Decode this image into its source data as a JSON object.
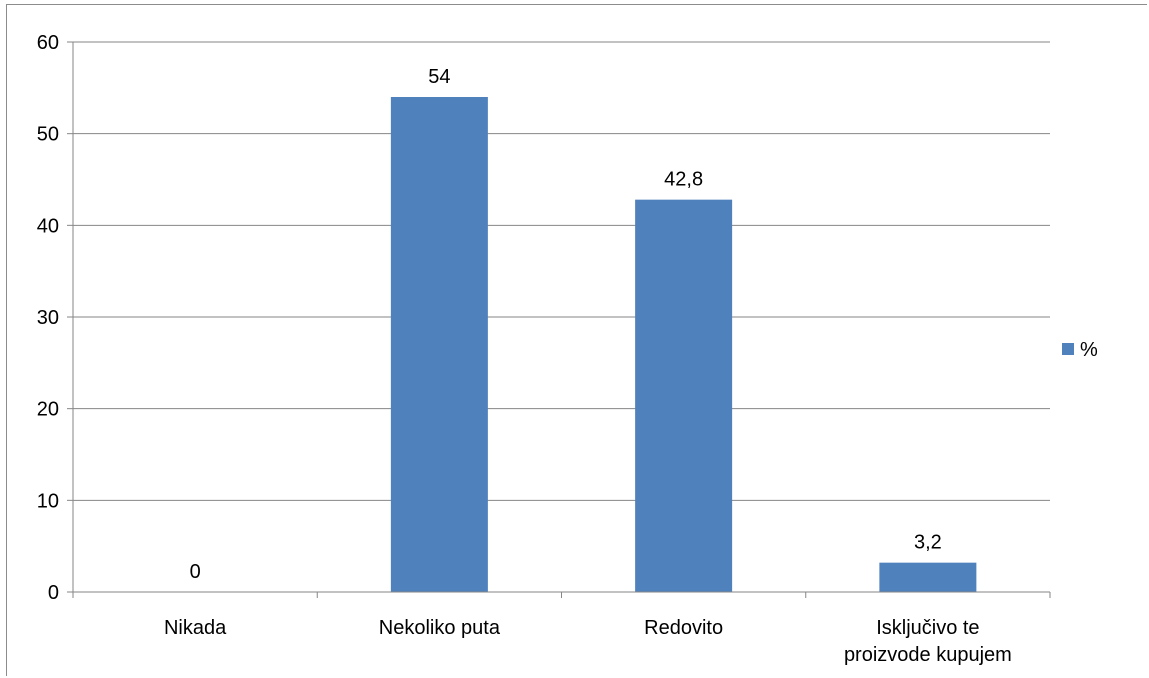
{
  "chart_data": {
    "type": "bar",
    "categories": [
      "Nikada",
      "Nekoliko puta",
      "Redovito",
      "Isključivo te proizvode kupujem"
    ],
    "category_lines": [
      [
        "Nikada"
      ],
      [
        "Nekoliko puta"
      ],
      [
        "Redovito"
      ],
      [
        "Isključivo te",
        "proizvode kupujem"
      ]
    ],
    "series": [
      {
        "name": "%",
        "values": [
          0,
          54,
          42.8,
          3.2
        ],
        "labels": [
          "0",
          "54",
          "42,8",
          "3,2"
        ]
      }
    ],
    "ylim": [
      0,
      60
    ],
    "yticks": [
      0,
      10,
      20,
      30,
      40,
      50,
      60
    ],
    "grid": true,
    "legend_position": "right",
    "colors": {
      "bar": "#4f81bd",
      "grid": "#868686",
      "axis": "#868686"
    }
  }
}
